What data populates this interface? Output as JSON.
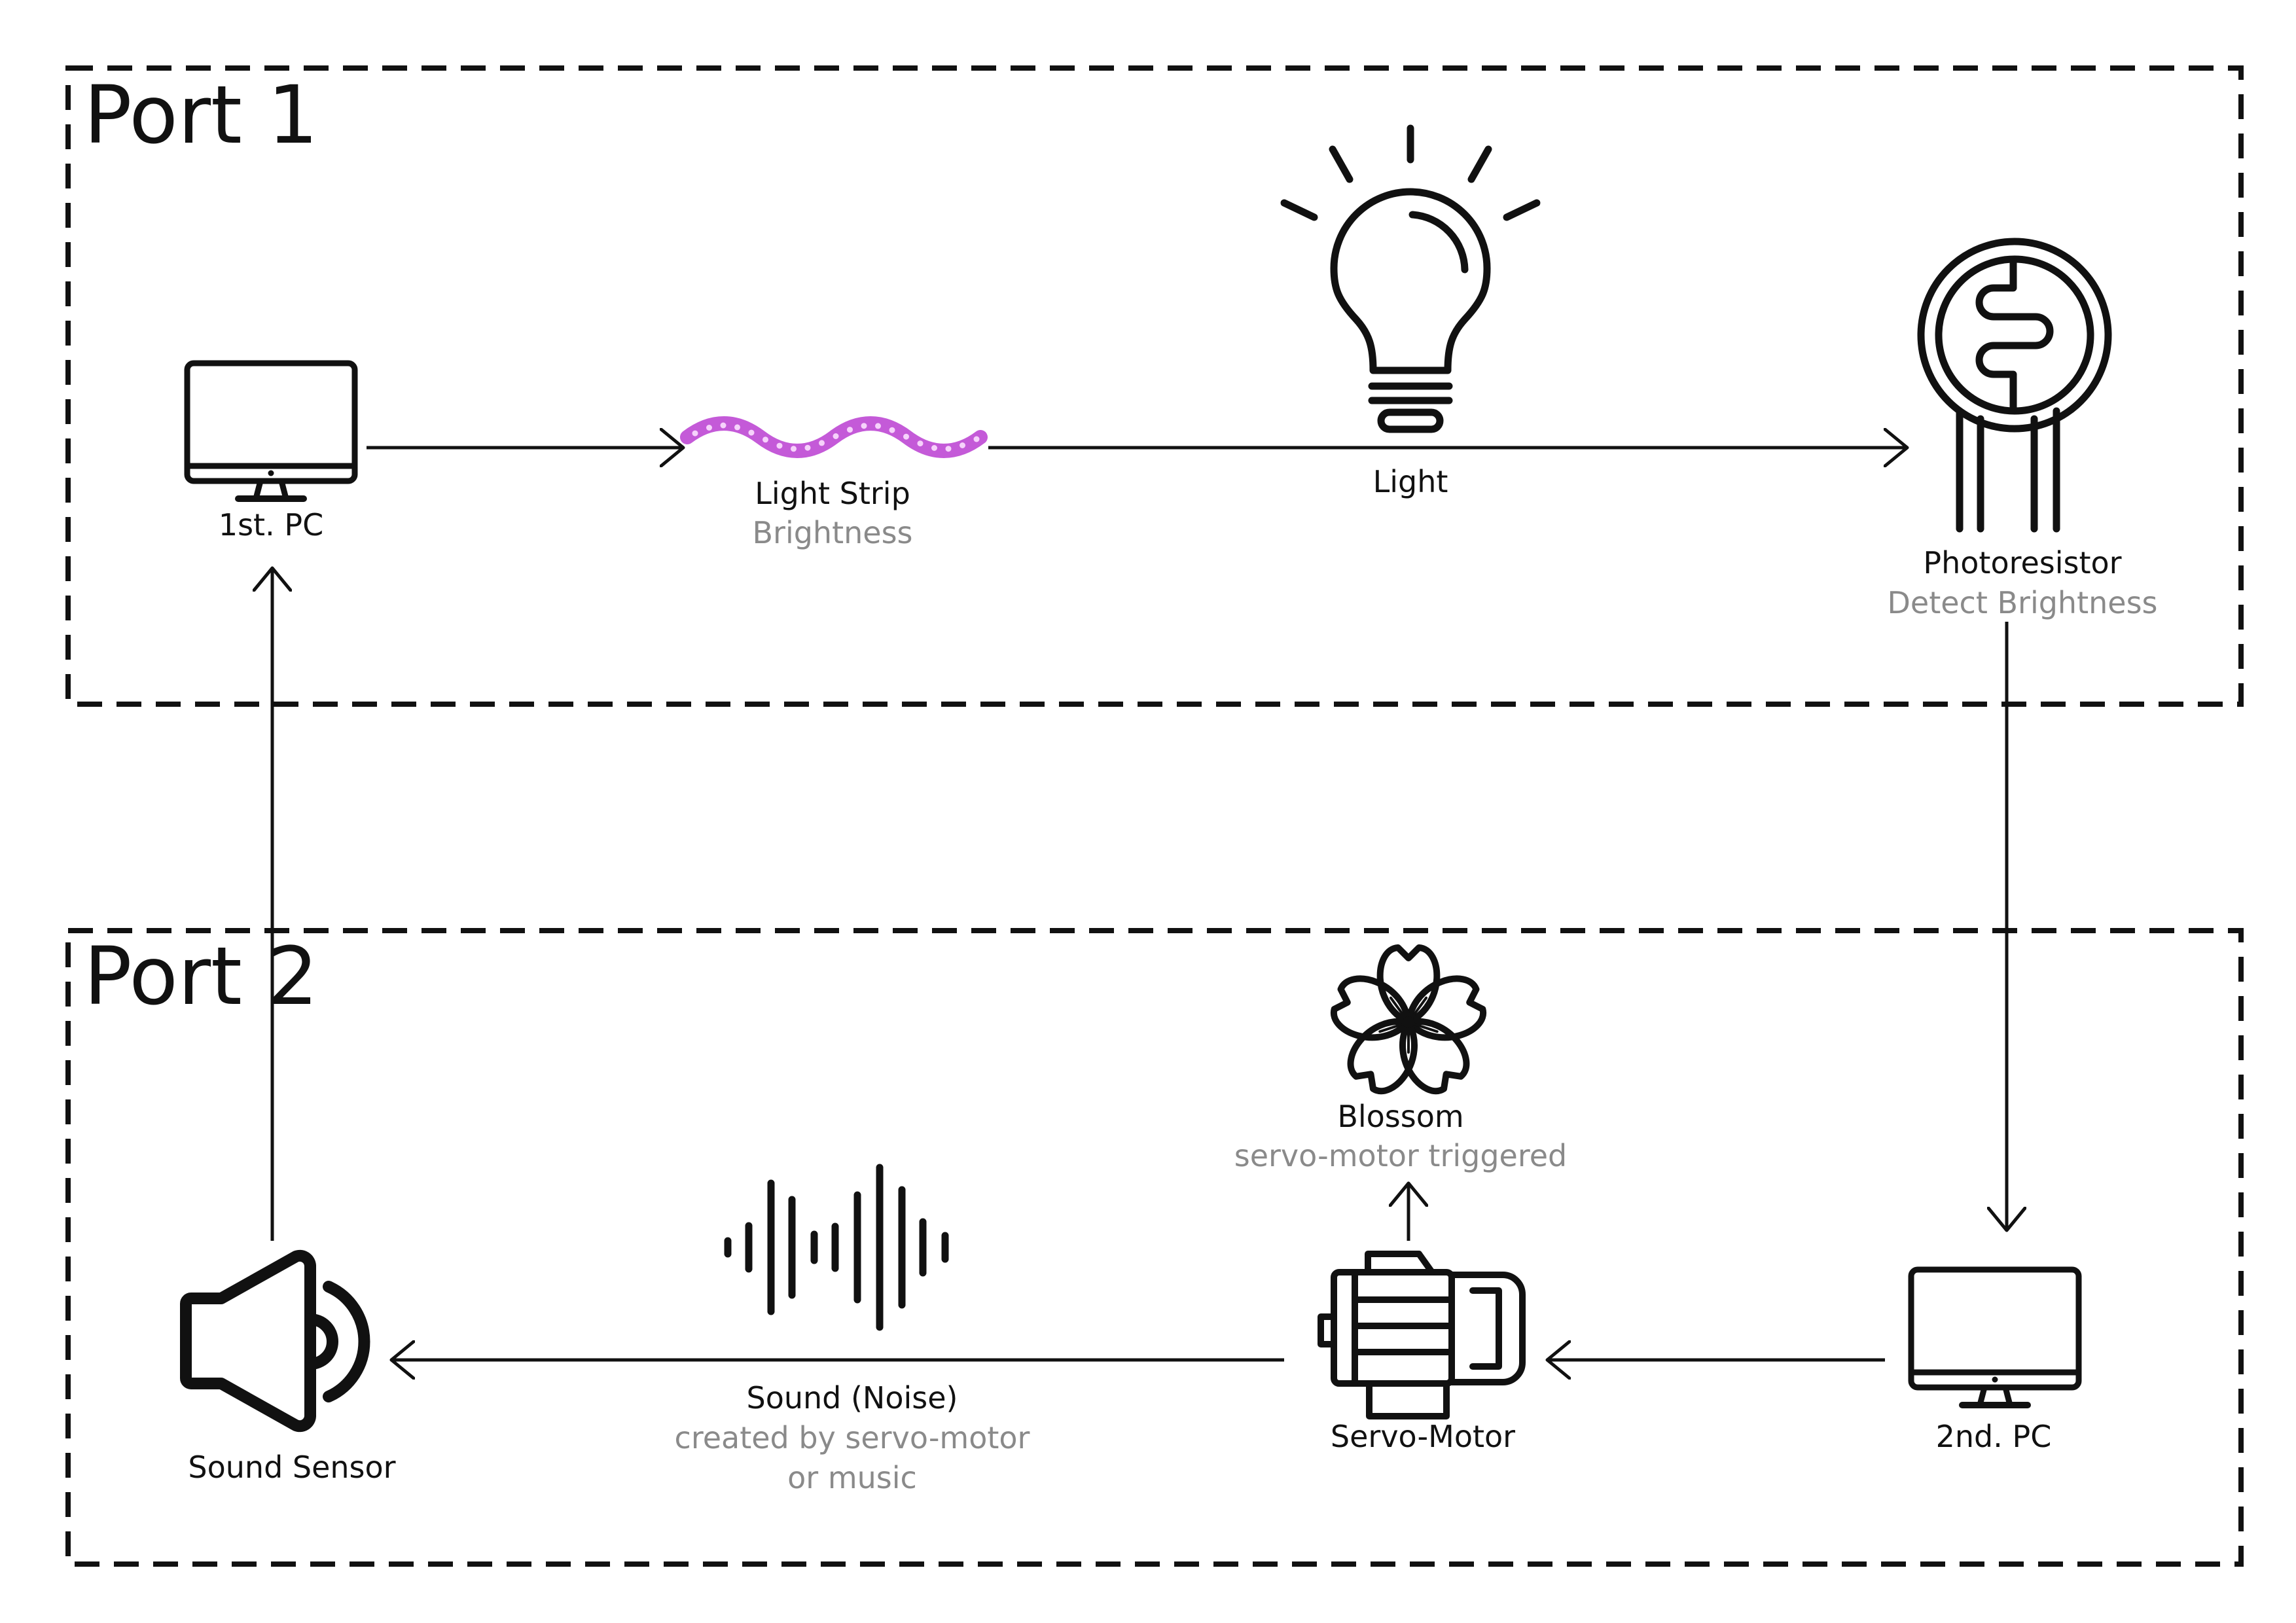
{
  "colors": {
    "line": "#111111",
    "sublabel": "#8a8a8a",
    "strip": "#c45ad8",
    "strip_led": "#f6d2fb",
    "background": "#ffffff"
  },
  "ports": [
    {
      "title": "Port 1"
    },
    {
      "title": "Port 2"
    }
  ],
  "nodes": {
    "pc1": {
      "label": "1st. PC",
      "icon": "monitor-icon"
    },
    "light_strip": {
      "label": "Light Strip",
      "sublabel": "Brightness",
      "icon": "light-strip-icon"
    },
    "light": {
      "label": "Light",
      "icon": "light-bulb-icon"
    },
    "photoresistor": {
      "label": "Photoresistor",
      "sublabel": "Detect Brightness",
      "icon": "photoresistor-icon"
    },
    "pc2": {
      "label": "2nd. PC",
      "icon": "monitor-icon"
    },
    "servo_motor": {
      "label": "Servo-Motor",
      "icon": "motor-icon"
    },
    "blossom": {
      "label": "Blossom",
      "sublabel": "servo-motor triggered",
      "icon": "blossom-icon"
    },
    "sound": {
      "label": "Sound (Noise)",
      "sublabel_line1": "created by servo-motor",
      "sublabel_line2": "or music",
      "icon": "sound-wave-icon"
    },
    "sound_sensor": {
      "label": "Sound Sensor",
      "icon": "speaker-icon"
    }
  }
}
